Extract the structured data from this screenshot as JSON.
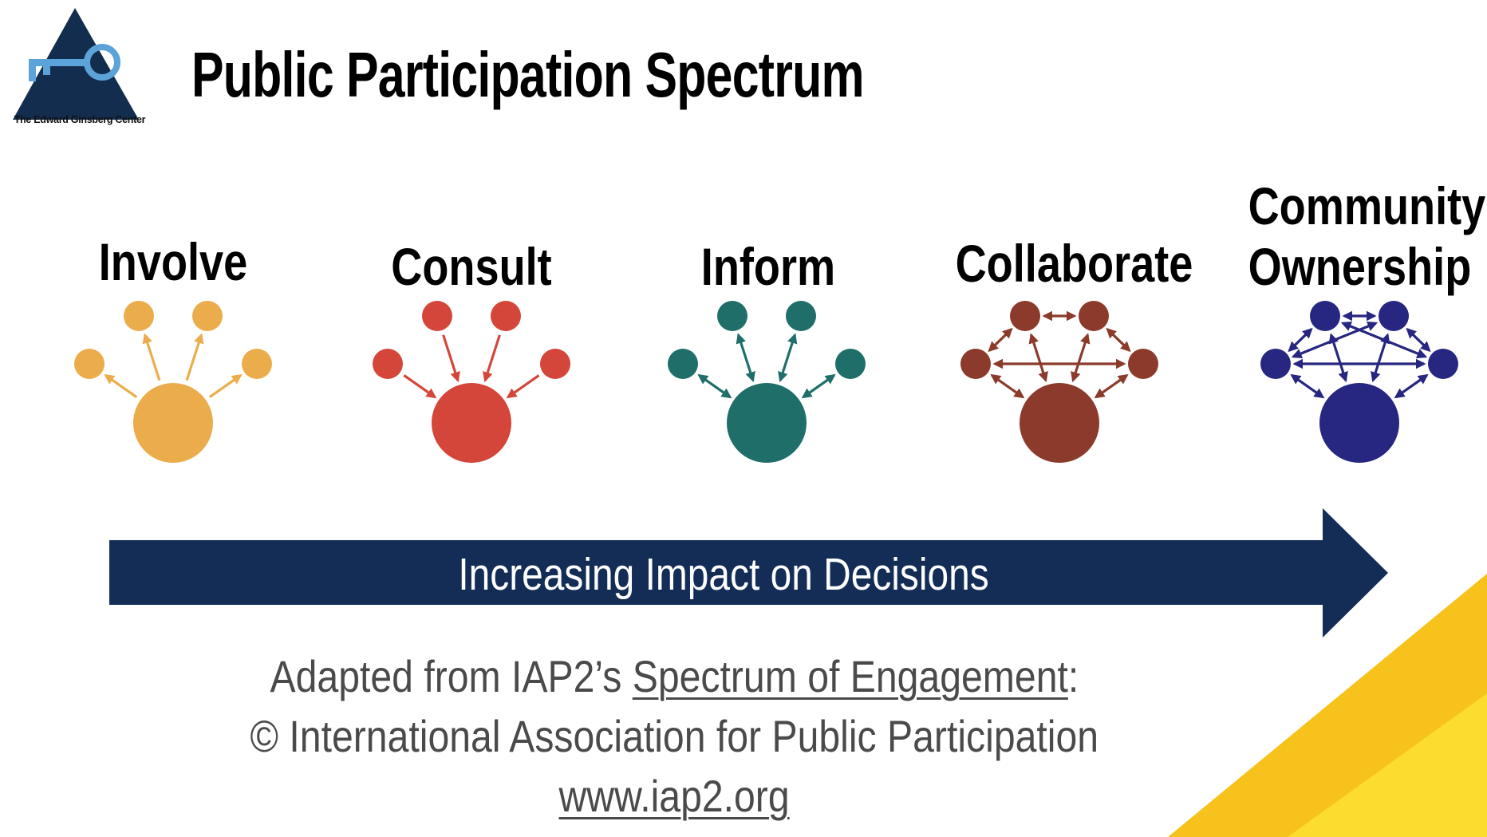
{
  "logo": {
    "caption": "The Edward Ginsberg Center"
  },
  "title": "Public Participation Spectrum",
  "stages": [
    {
      "label_lines": [
        "Involve"
      ],
      "color": "#EBAD4B"
    },
    {
      "label_lines": [
        "Consult"
      ],
      "color": "#D4463A"
    },
    {
      "label_lines": [
        "Inform"
      ],
      "color": "#1F6E6A"
    },
    {
      "label_lines": [
        "Collaborate"
      ],
      "color": "#8B3A2B"
    },
    {
      "label_lines": [
        "Community",
        "Ownership"
      ],
      "color": "#272680"
    }
  ],
  "arrow_banner": {
    "text": "Increasing Impact on Decisions",
    "color": "#132D57"
  },
  "credit": {
    "line1_prefix": "Adapted from IAP2’s ",
    "line1_link": "Spectrum of Engagement",
    "line1_suffix": ":",
    "line2": "© International Association for Public Participation",
    "line3_link": "www.iap2.org"
  },
  "accent_colors": {
    "yellow_dark": "#F6C21B",
    "yellow_light": "#FCDC2E"
  }
}
